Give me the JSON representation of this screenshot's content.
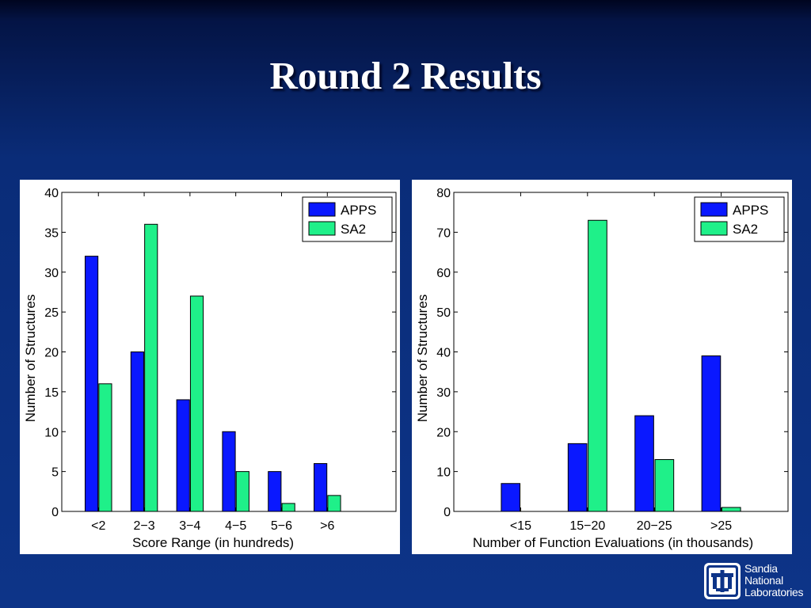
{
  "slide": {
    "title": "Round 2 Results"
  },
  "colors": {
    "apps": "#0a18ff",
    "sa2": "#1ff089",
    "background": "#0d3488"
  },
  "logo": {
    "icon": "sandia-thunderbird-icon",
    "lines": [
      "Sandia",
      "National",
      "Laboratories"
    ]
  },
  "chart_data": [
    {
      "type": "bar",
      "title": "",
      "xlabel": "Score Range (in hundreds)",
      "ylabel": "Number of Structures",
      "categories": [
        "<2",
        "2−3",
        "3−4",
        "4−5",
        "5−6",
        ">6"
      ],
      "series": [
        {
          "name": "APPS",
          "values": [
            32,
            20,
            14,
            10,
            5,
            6
          ]
        },
        {
          "name": "SA2",
          "values": [
            16,
            36,
            27,
            5,
            1,
            2
          ]
        }
      ],
      "xlim": [
        0.2,
        7.5
      ],
      "ylim": [
        0,
        40
      ],
      "yticks": [
        "0",
        "5",
        "10",
        "15",
        "20",
        "25",
        "30",
        "35",
        "40"
      ],
      "grid": false,
      "legend": "top-right"
    },
    {
      "type": "bar",
      "title": "",
      "xlabel": "Number of Function Evaluations (in thousands)",
      "ylabel": "Number of Structures",
      "categories": [
        "<15",
        "15−20",
        "20−25",
        ">25"
      ],
      "series": [
        {
          "name": "APPS",
          "values": [
            7,
            17,
            24,
            39
          ]
        },
        {
          "name": "SA2",
          "values": [
            0,
            73,
            13,
            1
          ]
        }
      ],
      "xlim": [
        0,
        5
      ],
      "ylim": [
        0,
        80
      ],
      "yticks": [
        "0",
        "10",
        "20",
        "30",
        "40",
        "50",
        "60",
        "70",
        "80"
      ],
      "grid": false,
      "legend": "top-right"
    }
  ]
}
